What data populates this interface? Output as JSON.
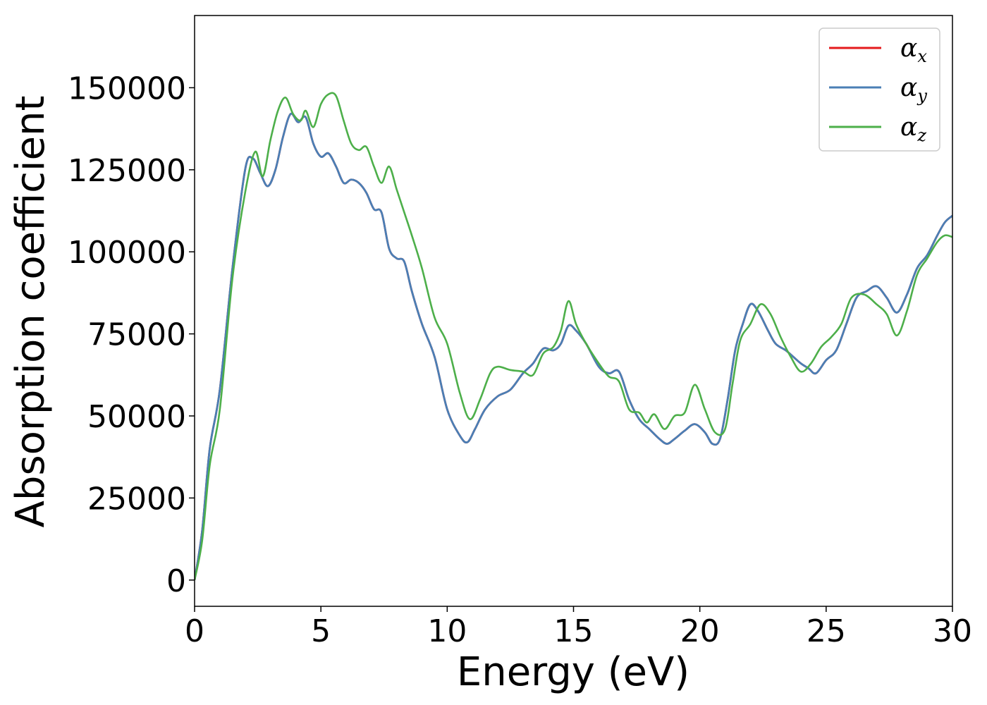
{
  "chart_data": {
    "type": "line",
    "title": "",
    "xlabel": "Energy (eV)",
    "ylabel": "Absorption coefficient",
    "xlim": [
      0,
      30
    ],
    "ylim": [
      -8000,
      172000
    ],
    "xticks": [
      0,
      5,
      10,
      15,
      20,
      25,
      30
    ],
    "yticks": [
      0,
      25000,
      50000,
      75000,
      100000,
      125000,
      150000
    ],
    "xtick_labels": [
      "0",
      "5",
      "10",
      "15",
      "20",
      "25",
      "30"
    ],
    "ytick_labels": [
      "0",
      "25000",
      "50000",
      "75000",
      "100000",
      "125000",
      "150000"
    ],
    "grid": false,
    "legend_position": "top-right",
    "series": [
      {
        "name": "α",
        "subscript": "x",
        "color": "#e41a1c",
        "x": [
          0,
          0.3,
          0.6,
          1.0,
          1.5,
          2.0,
          2.3,
          2.6,
          2.9,
          3.2,
          3.5,
          3.8,
          4.1,
          4.4,
          4.7,
          5.0,
          5.3,
          5.6,
          5.9,
          6.2,
          6.5,
          6.8,
          7.1,
          7.4,
          7.7,
          8.0,
          8.3,
          8.6,
          9.0,
          9.5,
          10.0,
          10.5,
          10.8,
          11.1,
          11.5,
          12.0,
          12.5,
          13.0,
          13.4,
          13.8,
          14.2,
          14.5,
          14.8,
          15.1,
          15.5,
          16.0,
          16.4,
          16.8,
          17.2,
          17.6,
          18.0,
          18.4,
          18.7,
          19.0,
          19.4,
          19.8,
          20.2,
          20.5,
          20.8,
          21.1,
          21.4,
          21.7,
          22.0,
          22.3,
          22.7,
          23.0,
          23.4,
          23.7,
          24.0,
          24.3,
          24.6,
          25.0,
          25.4,
          25.8,
          26.2,
          26.6,
          27.0,
          27.4,
          27.8,
          28.2,
          28.6,
          29.0,
          29.4,
          29.7,
          30.0
        ],
        "values": [
          0,
          15000,
          40000,
          58000,
          95000,
          125000,
          128500,
          124000,
          120000,
          125000,
          135000,
          142000,
          139500,
          141000,
          133000,
          129000,
          130000,
          126000,
          121000,
          122000,
          121000,
          118000,
          113000,
          112000,
          101000,
          98000,
          97000,
          88000,
          78000,
          68000,
          52000,
          44000,
          42000,
          46000,
          52000,
          56000,
          58000,
          63000,
          66000,
          70500,
          70000,
          72000,
          77500,
          76000,
          72000,
          65000,
          63000,
          63500,
          55000,
          49000,
          46000,
          43000,
          41500,
          43000,
          45500,
          47500,
          45000,
          41500,
          43000,
          55000,
          70000,
          78000,
          84000,
          82000,
          76000,
          72000,
          70000,
          68000,
          66000,
          64500,
          63000,
          67000,
          70000,
          78000,
          86000,
          88000,
          89500,
          86000,
          81500,
          87000,
          95000,
          99000,
          105000,
          109000,
          111000
        ]
      },
      {
        "name": "α",
        "subscript": "y",
        "color": "#4a7fb5",
        "x": [
          0,
          0.3,
          0.6,
          1.0,
          1.5,
          2.0,
          2.3,
          2.6,
          2.9,
          3.2,
          3.5,
          3.8,
          4.1,
          4.4,
          4.7,
          5.0,
          5.3,
          5.6,
          5.9,
          6.2,
          6.5,
          6.8,
          7.1,
          7.4,
          7.7,
          8.0,
          8.3,
          8.6,
          9.0,
          9.5,
          10.0,
          10.5,
          10.8,
          11.1,
          11.5,
          12.0,
          12.5,
          13.0,
          13.4,
          13.8,
          14.2,
          14.5,
          14.8,
          15.1,
          15.5,
          16.0,
          16.4,
          16.8,
          17.2,
          17.6,
          18.0,
          18.4,
          18.7,
          19.0,
          19.4,
          19.8,
          20.2,
          20.5,
          20.8,
          21.1,
          21.4,
          21.7,
          22.0,
          22.3,
          22.7,
          23.0,
          23.4,
          23.7,
          24.0,
          24.3,
          24.6,
          25.0,
          25.4,
          25.8,
          26.2,
          26.6,
          27.0,
          27.4,
          27.8,
          28.2,
          28.6,
          29.0,
          29.4,
          29.7,
          30.0
        ],
        "values": [
          0,
          15000,
          40000,
          58000,
          95000,
          125000,
          128500,
          124000,
          120000,
          125000,
          135000,
          142000,
          139500,
          141000,
          133000,
          129000,
          130000,
          126000,
          121000,
          122000,
          121000,
          118000,
          113000,
          112000,
          101000,
          98000,
          97000,
          88000,
          78000,
          68000,
          52000,
          44000,
          42000,
          46000,
          52000,
          56000,
          58000,
          63000,
          66000,
          70500,
          70000,
          72000,
          77500,
          76000,
          72000,
          65000,
          63000,
          63500,
          55000,
          49000,
          46000,
          43000,
          41500,
          43000,
          45500,
          47500,
          45000,
          41500,
          43000,
          55000,
          70000,
          78000,
          84000,
          82000,
          76000,
          72000,
          70000,
          68000,
          66000,
          64500,
          63000,
          67000,
          70000,
          78000,
          86000,
          88000,
          89500,
          86000,
          81500,
          87000,
          95000,
          99000,
          105000,
          109000,
          111000
        ]
      },
      {
        "name": "α",
        "subscript": "z",
        "color": "#4daf4a",
        "x": [
          0,
          0.3,
          0.6,
          1.0,
          1.5,
          2.0,
          2.4,
          2.7,
          3.0,
          3.3,
          3.6,
          3.9,
          4.2,
          4.4,
          4.7,
          5.0,
          5.3,
          5.6,
          5.9,
          6.2,
          6.5,
          6.8,
          7.1,
          7.4,
          7.7,
          8.0,
          8.3,
          8.6,
          9.0,
          9.5,
          10.0,
          10.5,
          10.9,
          11.3,
          11.7,
          12.0,
          12.5,
          13.0,
          13.4,
          13.8,
          14.2,
          14.5,
          14.8,
          15.1,
          15.5,
          16.0,
          16.4,
          16.8,
          17.2,
          17.6,
          17.9,
          18.2,
          18.6,
          19.0,
          19.4,
          19.8,
          20.2,
          20.6,
          21.0,
          21.3,
          21.6,
          22.0,
          22.4,
          22.8,
          23.2,
          23.6,
          24.0,
          24.4,
          24.8,
          25.2,
          25.6,
          26.0,
          26.5,
          27.0,
          27.4,
          27.8,
          28.2,
          28.6,
          29.0,
          29.4,
          29.7,
          30.0
        ],
        "values": [
          0,
          12000,
          35000,
          52000,
          92000,
          118000,
          130500,
          123000,
          134000,
          143000,
          147000,
          142000,
          140000,
          143000,
          138000,
          145000,
          148000,
          147500,
          140000,
          133000,
          131000,
          132000,
          126000,
          121000,
          126000,
          119000,
          112000,
          105000,
          95000,
          80000,
          72000,
          57000,
          49000,
          55000,
          63000,
          65000,
          64000,
          63500,
          62500,
          69000,
          71000,
          76000,
          85000,
          78000,
          72000,
          66000,
          62000,
          60500,
          52000,
          51000,
          48000,
          50500,
          46000,
          50000,
          51000,
          59500,
          52000,
          45000,
          46000,
          60000,
          73000,
          78000,
          84000,
          81000,
          74000,
          68000,
          63500,
          66000,
          71000,
          74000,
          78000,
          86000,
          87000,
          84000,
          81000,
          74500,
          82000,
          93000,
          98000,
          103000,
          105000,
          104500
        ]
      }
    ]
  }
}
